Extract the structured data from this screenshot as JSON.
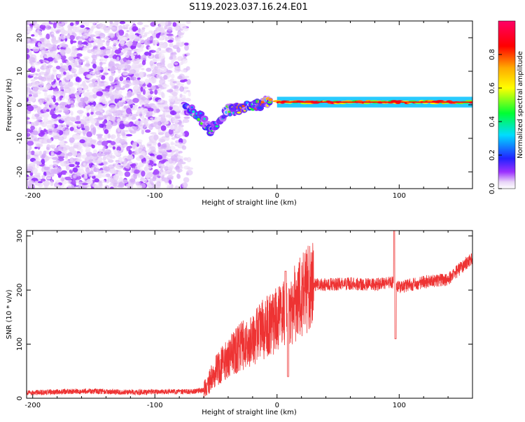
{
  "figure_title": "S119.2023.037.16.24.E01",
  "chart_data": [
    {
      "type": "heatmap",
      "title": "S119.2023.037.16.24.E01",
      "xlabel": "Height of straight line (km)",
      "ylabel": "Frequency (Hz)",
      "xlim": [
        -205,
        160
      ],
      "ylim": [
        -25,
        25
      ],
      "xticks": [
        -200,
        -100,
        0,
        100
      ],
      "yticks": [
        -20,
        -10,
        0,
        10,
        20
      ],
      "colorbar": {
        "label": "Normalized spectral amplitude",
        "range": [
          0,
          1
        ],
        "ticks": [
          0.0,
          0.2,
          0.4,
          0.6,
          0.8
        ],
        "tick_labels": [
          "0.0",
          "0.2",
          "0.4",
          "0.6",
          "0.8"
        ],
        "colormap": "rainbow (white-violet-blue-cyan-green-yellow-red-pink)"
      },
      "features": [
        {
          "name": "noise",
          "x_range": [
            -205,
            -70
          ],
          "freq_range": [
            -25,
            25
          ],
          "amplitude_range": [
            0.0,
            0.1
          ]
        },
        {
          "name": "descending-segment",
          "points": [
            [
              -75,
              -1
            ],
            [
              -65,
              -3
            ],
            [
              -55,
              -7
            ],
            [
              -48,
              -6
            ],
            [
              -42,
              -2
            ],
            [
              -30,
              -1
            ],
            [
              -15,
              0
            ],
            [
              -5,
              1
            ]
          ],
          "amplitude_range": [
            0.05,
            0.8
          ]
        },
        {
          "name": "steady-line",
          "x_range": [
            0,
            160
          ],
          "freq": 0.8,
          "amplitude_range": [
            0.4,
            0.95
          ]
        }
      ]
    },
    {
      "type": "line",
      "xlabel": "Height of straight line (km)",
      "ylabel": "SNR (10 * v/v)",
      "xlim": [
        -205,
        160
      ],
      "ylim": [
        0,
        310
      ],
      "xticks": [
        -200,
        -100,
        0,
        100
      ],
      "yticks": [
        0,
        100,
        200,
        300
      ],
      "color": "#ee3333",
      "series": [
        {
          "name": "SNR",
          "x": [
            -205,
            -180,
            -150,
            -120,
            -90,
            -70,
            -60,
            -50,
            -40,
            -30,
            -20,
            -10,
            0,
            10,
            20,
            30,
            40,
            60,
            80,
            95,
            100,
            120,
            140,
            160
          ],
          "values": [
            10,
            12,
            13,
            11,
            12,
            12,
            15,
            50,
            75,
            95,
            110,
            130,
            145,
            160,
            190,
            210,
            210,
            212,
            210,
            215,
            205,
            215,
            220,
            260
          ],
          "spikes": [
            {
              "x": 7,
              "value": 235
            },
            {
              "x": 9,
              "value": 40
            },
            {
              "x": 96,
              "value": 310
            },
            {
              "x": 97,
              "value": 110
            }
          ]
        }
      ]
    }
  ]
}
